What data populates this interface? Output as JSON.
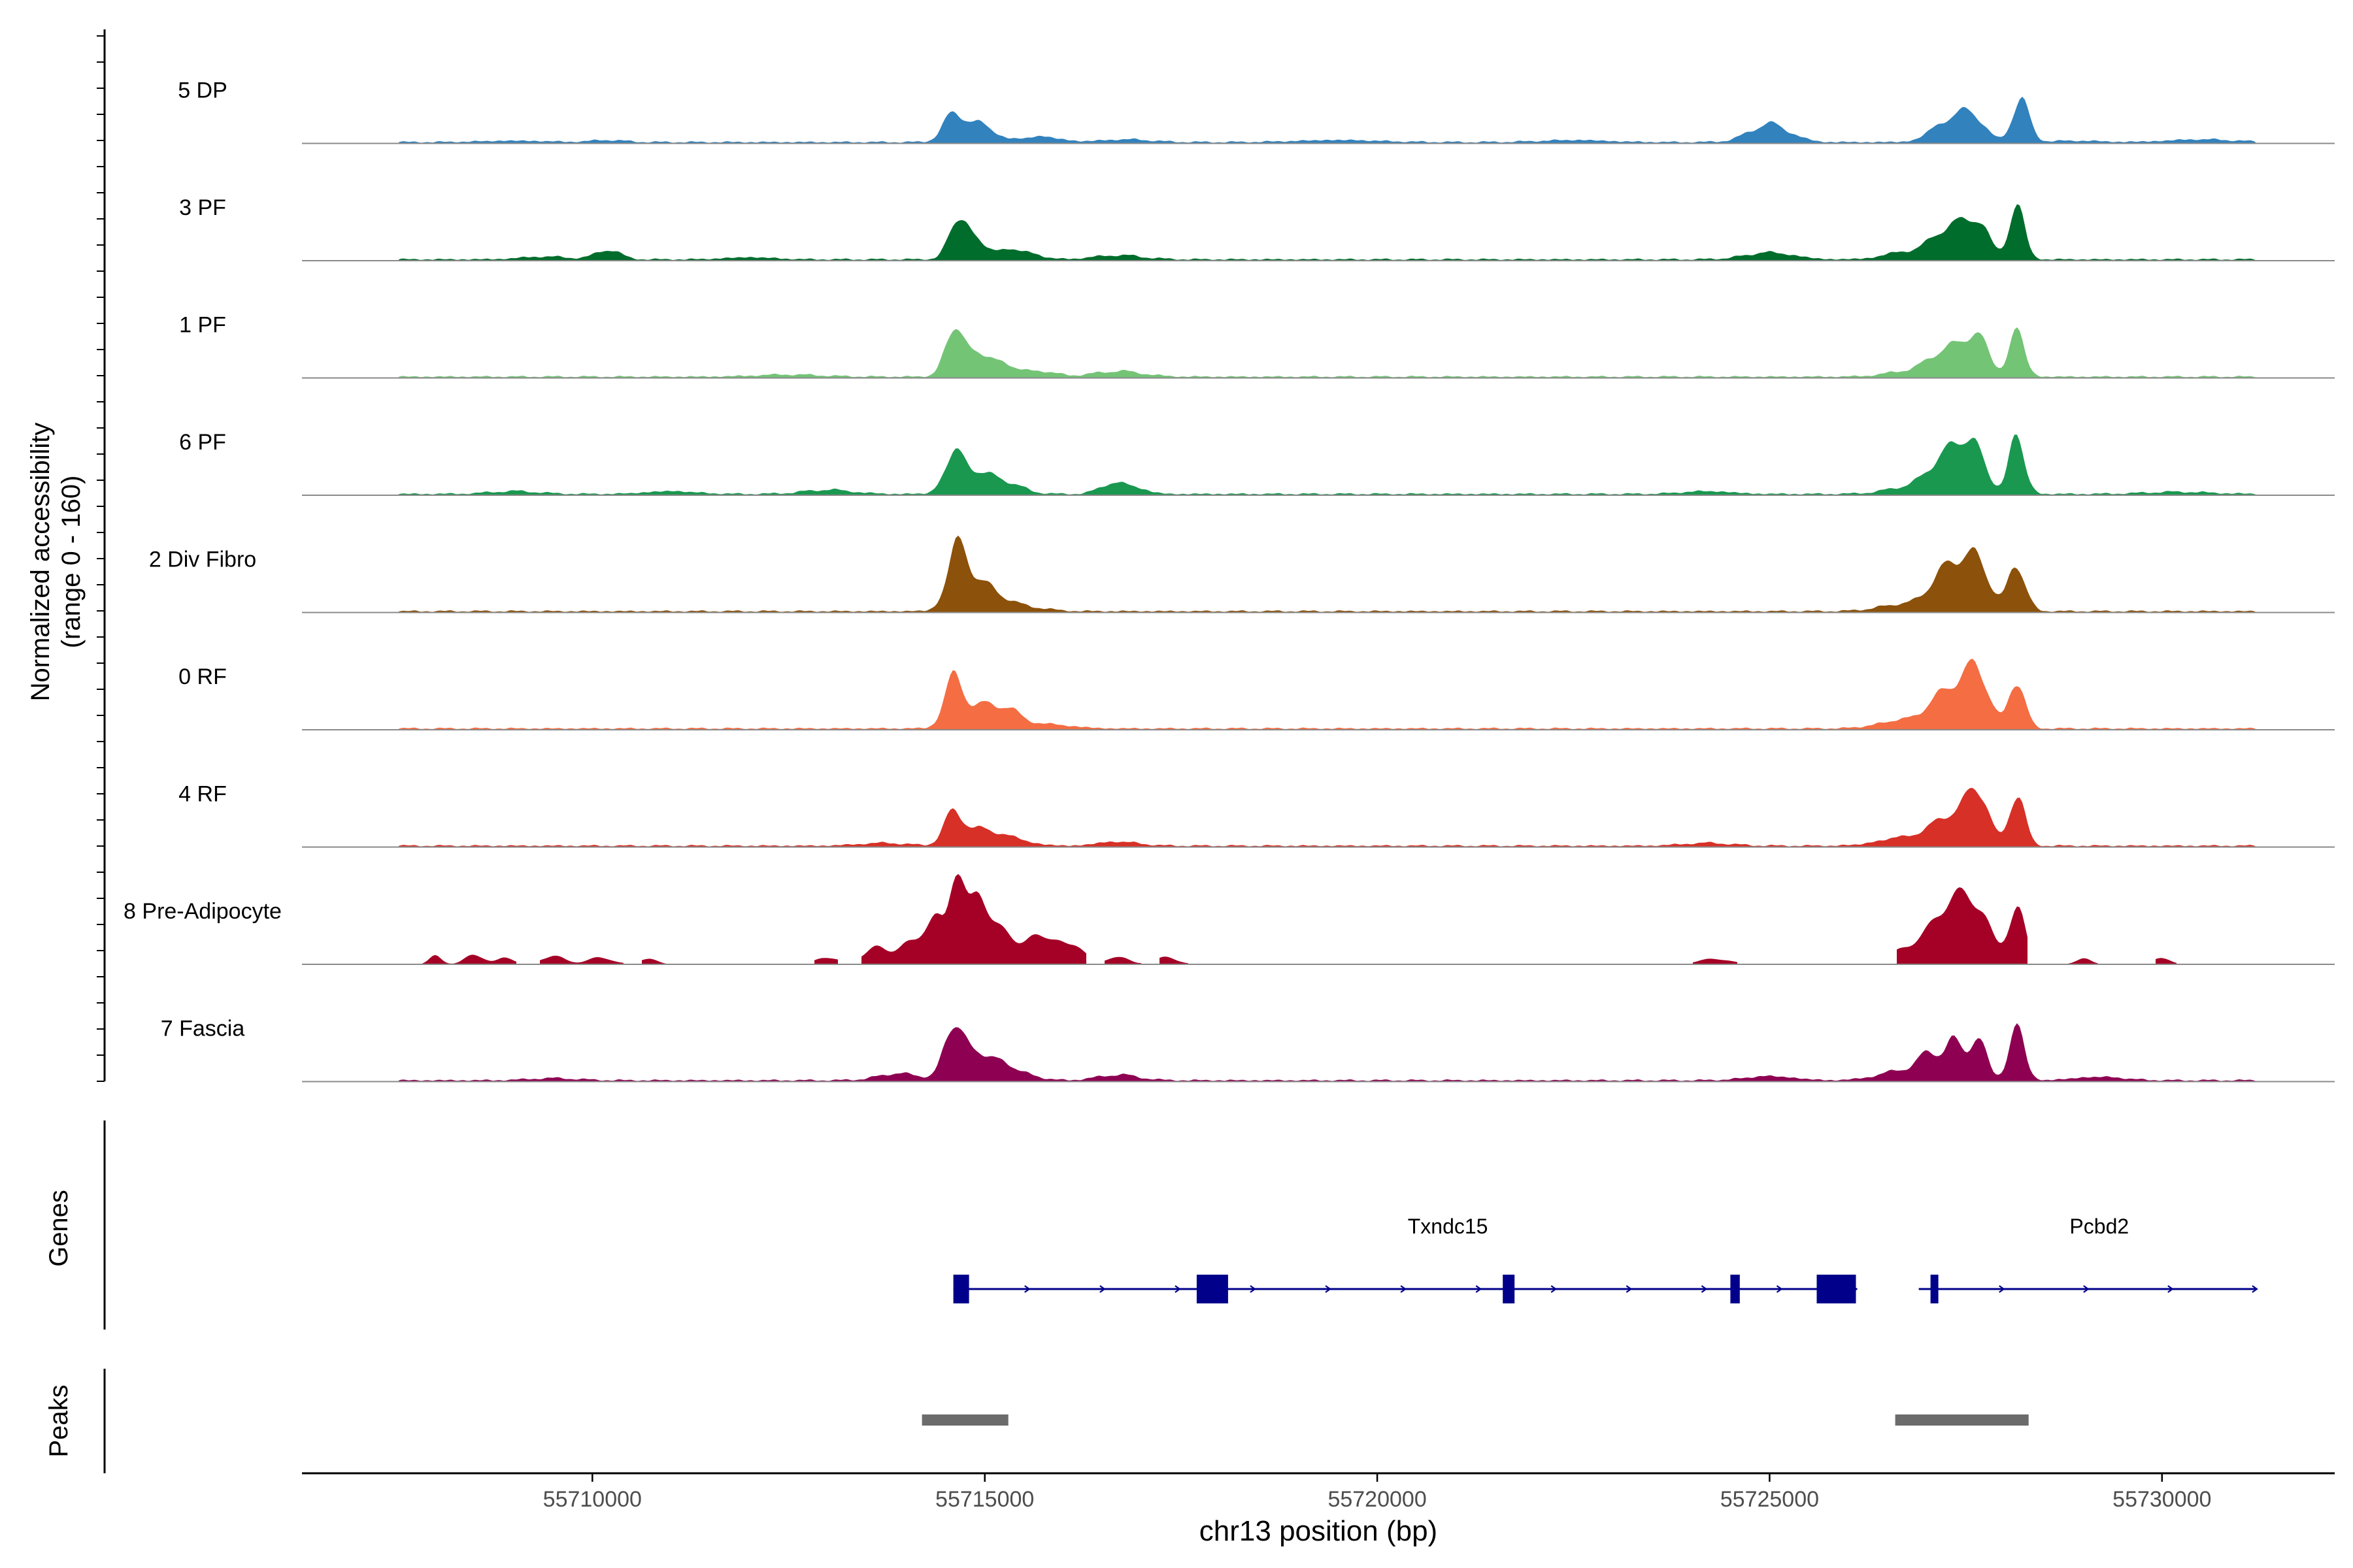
{
  "chart_data": {
    "type": "area",
    "title": "",
    "ylabel": "Normalized accessibility",
    "ylabel_range": "(range 0 - 160)",
    "ylim": [
      0,
      160
    ],
    "xlabel": "chr13 position (bp)",
    "xlim": [
      55706300,
      55732200
    ],
    "xticks": [
      55710000,
      55715000,
      55720000,
      55725000,
      55730000
    ],
    "xtick_labels": [
      "55710000",
      "55715000",
      "55720000",
      "55725000",
      "55730000"
    ],
    "tracks": [
      {
        "name": "5 DP",
        "color": "#3182BD",
        "bg": 2,
        "range": [
          55707500,
          55731200
        ],
        "segments": [],
        "peaks": [
          [
            55714600,
            40,
            130
          ],
          [
            55714950,
            26,
            170
          ],
          [
            55715700,
            8,
            250
          ],
          [
            55716800,
            4,
            300
          ],
          [
            55709000,
            2,
            400
          ],
          [
            55710200,
            3,
            200
          ],
          [
            55719500,
            3,
            500
          ],
          [
            55722500,
            3,
            400
          ],
          [
            55725000,
            26,
            250
          ],
          [
            55727300,
            32,
            220
          ],
          [
            55727600,
            30,
            150
          ],
          [
            55728200,
            60,
            110
          ],
          [
            55728900,
            2,
            300
          ],
          [
            55730500,
            4,
            400
          ]
        ]
      },
      {
        "name": "3 PF",
        "color": "#006D2C",
        "bg": 2,
        "range": [
          55707500,
          55731200
        ],
        "segments": [],
        "peaks": [
          [
            55714650,
            48,
            110
          ],
          [
            55714850,
            26,
            180
          ],
          [
            55715400,
            14,
            220
          ],
          [
            55716700,
            6,
            300
          ],
          [
            55710200,
            14,
            150
          ],
          [
            55709400,
            4,
            300
          ],
          [
            55712000,
            3,
            300
          ],
          [
            55725000,
            10,
            300
          ],
          [
            55727300,
            46,
            230
          ],
          [
            55727650,
            44,
            150
          ],
          [
            55728150,
            74,
            100
          ],
          [
            55726700,
            10,
            250
          ]
        ]
      },
      {
        "name": "1 PF",
        "color": "#74C476",
        "bg": 2,
        "range": [
          55707500,
          55731200
        ],
        "segments": [],
        "peaks": [
          [
            55714600,
            68,
            110
          ],
          [
            55714900,
            34,
            160
          ],
          [
            55715250,
            16,
            160
          ],
          [
            55715700,
            8,
            200
          ],
          [
            55716700,
            8,
            300
          ],
          [
            55712500,
            3,
            400
          ],
          [
            55727300,
            40,
            230
          ],
          [
            55727650,
            50,
            140
          ],
          [
            55728150,
            64,
            100
          ],
          [
            55726800,
            8,
            300
          ]
        ]
      },
      {
        "name": "6 PF",
        "color": "#1A9850",
        "bg": 2,
        "range": [
          55707500,
          55731200
        ],
        "segments": [],
        "peaks": [
          [
            55714600,
            52,
            120
          ],
          [
            55714900,
            30,
            200
          ],
          [
            55715300,
            14,
            200
          ],
          [
            55716600,
            14,
            150
          ],
          [
            55716900,
            10,
            150
          ],
          [
            55713000,
            6,
            300
          ],
          [
            55709000,
            4,
            300
          ],
          [
            55711000,
            4,
            300
          ],
          [
            55727300,
            58,
            230
          ],
          [
            55727600,
            52,
            150
          ],
          [
            55728150,
            82,
            100
          ],
          [
            55726800,
            10,
            300
          ],
          [
            55724200,
            4,
            300
          ],
          [
            55730200,
            3,
            400
          ]
        ]
      },
      {
        "name": "2 Div Fibro",
        "color": "#8C510A",
        "bg": 2,
        "range": [
          55707500,
          55731200
        ],
        "segments": [],
        "peaks": [
          [
            55714650,
            82,
            130
          ],
          [
            55714950,
            36,
            220
          ],
          [
            55715400,
            8,
            300
          ],
          [
            55727300,
            64,
            220
          ],
          [
            55727650,
            60,
            160
          ],
          [
            55728150,
            66,
            110
          ],
          [
            55726700,
            10,
            300
          ]
        ]
      },
      {
        "name": "0 RF",
        "color": "#F46D43",
        "bg": 2,
        "range": [
          55707500,
          55731200
        ],
        "segments": [],
        "peaks": [
          [
            55714600,
            68,
            120
          ],
          [
            55714950,
            30,
            200
          ],
          [
            55715300,
            22,
            180
          ],
          [
            55715800,
            6,
            300
          ],
          [
            55727300,
            56,
            230
          ],
          [
            55727650,
            72,
            150
          ],
          [
            55728150,
            70,
            100
          ],
          [
            55726700,
            12,
            300
          ]
        ]
      },
      {
        "name": "4 RF",
        "color": "#D73027",
        "bg": 2,
        "range": [
          55707500,
          55731200
        ],
        "segments": [],
        "peaks": [
          [
            55714600,
            46,
            120
          ],
          [
            55714950,
            22,
            200
          ],
          [
            55715350,
            10,
            220
          ],
          [
            55716700,
            6,
            250
          ],
          [
            55713700,
            4,
            300
          ],
          [
            55727300,
            42,
            230
          ],
          [
            55727650,
            72,
            140
          ],
          [
            55728150,
            74,
            100
          ],
          [
            55726700,
            12,
            300
          ],
          [
            55724200,
            4,
            300
          ]
        ]
      },
      {
        "name": "8 Pre-Adipocyte",
        "color": "#A50026",
        "bg": 0,
        "range": [
          55707500,
          55731200
        ],
        "segments": [
          [
            55707800,
            55709050
          ],
          [
            55709300,
            55710400
          ],
          [
            55710600,
            55711100
          ],
          [
            55712800,
            55713150
          ],
          [
            55713400,
            55716300
          ],
          [
            55716500,
            55717000
          ],
          [
            55717200,
            55717600
          ],
          [
            55724000,
            55724600
          ],
          [
            55726600,
            55728300
          ],
          [
            55728700,
            55729200
          ],
          [
            55729900,
            55730200
          ]
        ],
        "peaks": [
          [
            55708000,
            12,
            80
          ],
          [
            55708500,
            14,
            120
          ],
          [
            55708900,
            10,
            100
          ],
          [
            55709500,
            12,
            150
          ],
          [
            55710100,
            10,
            150
          ],
          [
            55710700,
            8,
            120
          ],
          [
            55713000,
            10,
            150
          ],
          [
            55713600,
            24,
            150
          ],
          [
            55714000,
            28,
            140
          ],
          [
            55714350,
            70,
            130
          ],
          [
            55714650,
            130,
            90
          ],
          [
            55714900,
            74,
            130
          ],
          [
            55715150,
            50,
            180
          ],
          [
            55715600,
            36,
            150
          ],
          [
            55715900,
            34,
            120
          ],
          [
            55716200,
            24,
            120
          ],
          [
            55716700,
            12,
            120
          ],
          [
            55717300,
            10,
            150
          ],
          [
            55724300,
            8,
            200
          ],
          [
            55726800,
            24,
            250
          ],
          [
            55727300,
            80,
            220
          ],
          [
            55727650,
            66,
            180
          ],
          [
            55728150,
            78,
            110
          ],
          [
            55729000,
            8,
            100
          ],
          [
            55730000,
            10,
            100
          ]
        ]
      },
      {
        "name": "7 Fascia",
        "color": "#8E0152",
        "bg": 2,
        "range": [
          55707500,
          55731200
        ],
        "segments": [],
        "peaks": [
          [
            55714600,
            70,
            120
          ],
          [
            55714900,
            34,
            220
          ],
          [
            55715300,
            16,
            250
          ],
          [
            55713900,
            10,
            250
          ],
          [
            55716700,
            8,
            250
          ],
          [
            55709500,
            3,
            300
          ],
          [
            55727050,
            32,
            150
          ],
          [
            55727350,
            50,
            110
          ],
          [
            55727650,
            60,
            110
          ],
          [
            55728150,
            74,
            100
          ],
          [
            55726700,
            14,
            300
          ],
          [
            55725000,
            6,
            300
          ],
          [
            55729200,
            5,
            300
          ]
        ]
      }
    ],
    "genes": [
      {
        "name": "Txndc15",
        "start": 55714600,
        "end": 55726100,
        "exons": [
          [
            55714600,
            55714800
          ],
          [
            55717700,
            55718100
          ],
          [
            55721600,
            55721750
          ],
          [
            55724500,
            55724620
          ],
          [
            55725600,
            55726100
          ]
        ]
      },
      {
        "name": "Pcbd2",
        "start": 55726900,
        "end": 55731200,
        "exons": [
          [
            55727050,
            55727150
          ]
        ]
      }
    ],
    "peak_regions": [
      [
        55714200,
        55715300
      ],
      [
        55726600,
        55728300
      ]
    ],
    "panel_labels": {
      "genes": "Genes",
      "peaks": "Peaks"
    }
  }
}
